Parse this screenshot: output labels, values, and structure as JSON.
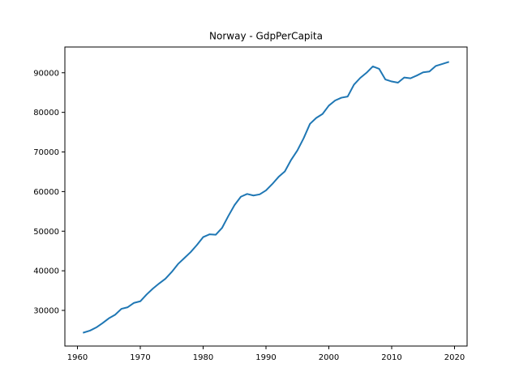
{
  "chart_data": {
    "type": "line",
    "title": "Norway - GdpPerCapita",
    "xlabel": "",
    "ylabel": "",
    "xlim": [
      1958,
      2022
    ],
    "ylim": [
      21000,
      96500
    ],
    "grid": false,
    "line_color": "#1f77b4",
    "x_ticks": [
      1960,
      1970,
      1980,
      1990,
      2000,
      2010,
      2020
    ],
    "y_ticks": [
      30000,
      40000,
      50000,
      60000,
      70000,
      80000,
      90000
    ],
    "series": [
      {
        "x": [
          1961,
          1962,
          1963,
          1964,
          1965,
          1966,
          1967,
          1968,
          1969,
          1970,
          1971,
          1972,
          1973,
          1974,
          1975,
          1976,
          1977,
          1978,
          1979,
          1980,
          1981,
          1982,
          1983,
          1984,
          1985,
          1986,
          1987,
          1988,
          1989,
          1990,
          1991,
          1992,
          1993,
          1994,
          1995,
          1996,
          1997,
          1998,
          1999,
          2000,
          2001,
          2002,
          2003,
          2004,
          2005,
          2006,
          2007,
          2008,
          2009,
          2010,
          2011,
          2012,
          2013,
          2014,
          2015,
          2016,
          2017,
          2018,
          2019
        ],
        "values": [
          24400,
          24900,
          25700,
          26800,
          28000,
          28900,
          30400,
          30800,
          31900,
          32300,
          34000,
          35500,
          36800,
          38000,
          39700,
          41700,
          43200,
          44700,
          46500,
          48500,
          49200,
          49100,
          50800,
          53800,
          56600,
          58700,
          59400,
          59000,
          59300,
          60300,
          61900,
          63700,
          65100,
          68000,
          70400,
          73500,
          77100,
          78600,
          79600,
          81700,
          83000,
          83700,
          84000,
          87000,
          88700,
          90000,
          91600,
          91000,
          88300,
          87800,
          87500,
          88800,
          88600,
          89300,
          90100,
          90300,
          91700,
          92200,
          92700
        ]
      }
    ]
  }
}
